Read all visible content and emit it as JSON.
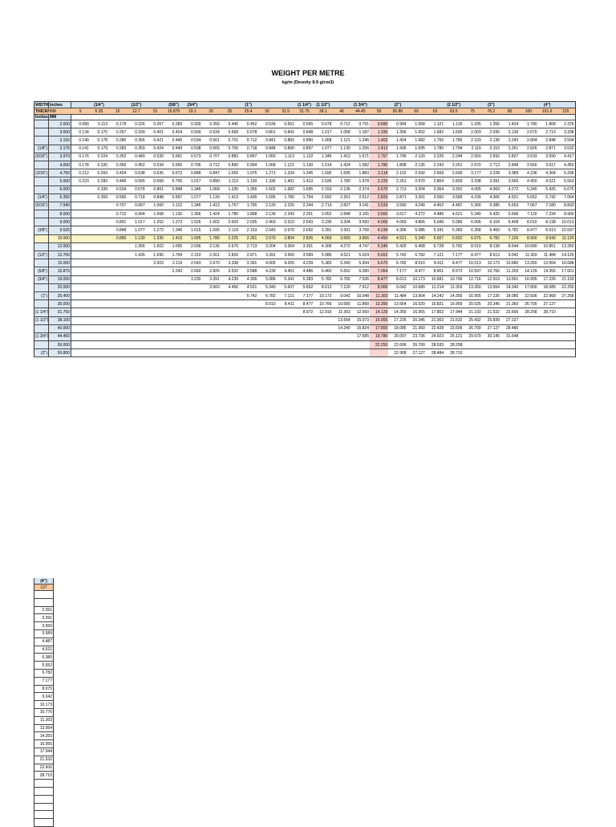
{
  "header": {
    "title": "WEIGHT PER METRE",
    "subtitle": "kg/m (Desnity 8.9 g/cm3)"
  },
  "table": {
    "width_label": "WIDTH",
    "width_unit": "Inches",
    "width_inches": [
      null,
      "(1/4\")",
      null,
      "(1/2\")",
      null,
      "(5/8\")",
      "(3/4\")",
      null,
      null,
      "(1\")",
      null,
      null,
      "(1 1/4\")",
      "(1 1/2\")",
      null,
      "(1 3/4\")",
      null,
      "(2\")",
      null,
      null,
      "(2 1/2\")",
      null,
      "(3\")",
      null,
      null,
      "(4\")",
      null
    ],
    "thickness_label": "THICKNESS",
    "mm_unit": "MM",
    "width_mm": [
      "5",
      "6.35",
      "10",
      "12.7",
      "15",
      "15.875",
      "19.1",
      "20",
      "25",
      "25.4",
      "30",
      "31.5",
      "31.75",
      "38.1",
      "40",
      "44.45",
      "50",
      "50.80",
      "60",
      "63",
      "63.5",
      "75",
      "76.2",
      "80",
      "100",
      "101.6",
      "125"
    ],
    "row_head_inches": "Inches",
    "row_head_mm": "MM",
    "rows": [
      {
        "inch": null,
        "mm": "2.000",
        "cells": [
          "0.089",
          "0.113",
          "0.178",
          "0.226",
          "0.267",
          "0.283",
          "0.339",
          "0.356",
          "0.445",
          "0.452",
          "0.534",
          "0.561",
          "0.565",
          "0.678",
          "0.712",
          "0.791",
          "0.890",
          "0.904",
          "1.068",
          "1.121",
          "1.130",
          "1.335",
          "1.356",
          "1.424",
          "1.780",
          "1.808",
          "2.225"
        ]
      },
      {
        "inch": null,
        "mm": "3.000",
        "cells": [
          "0.134",
          "0.170",
          "0.267",
          "0.339",
          "0.401",
          "0.424",
          "0.509",
          "0.534",
          "0.668",
          "0.678",
          "0.801",
          "0.841",
          "0.848",
          "1.017",
          "1.068",
          "1.187",
          "1.335",
          "1.356",
          "1.602",
          "1.682",
          "1.695",
          "2.003",
          "2.035",
          "2.136",
          "2.670",
          "2.713",
          "3.338"
        ]
      },
      {
        "inch": null,
        "mm": "3.150",
        "cells": [
          "0.140",
          "0.178",
          "0.280",
          "0.356",
          "0.421",
          "0.445",
          "0.534",
          "0.561",
          "0.701",
          "0.712",
          "0.841",
          "0.883",
          "0.890",
          "1.068",
          "1.121",
          "1.246",
          "1.402",
          "1.424",
          "1.682",
          "1.766",
          "1.780",
          "2.103",
          "2.136",
          "2.243",
          "2.804",
          "2.848",
          "3.504"
        ]
      },
      {
        "inch": "(1/8\")",
        "mm": "3.175",
        "cells": [
          "0.141",
          "0.179",
          "0.283",
          "0.359",
          "0.424",
          "0.449",
          "0.538",
          "0.565",
          "0.706",
          "0.718",
          "0.848",
          "0.890",
          "0.897",
          "1.077",
          "1.130",
          "1.256",
          "1.412",
          "1.435",
          "1.695",
          "1.780",
          "1.794",
          "2.119",
          "2.153",
          "2.261",
          "2.826",
          "2.871",
          "3.532"
        ]
      },
      {
        "inch": "(5/32\")",
        "mm": "3.970",
        "cells": [
          "0.176",
          "0.224",
          "0.352",
          "0.449",
          "0.530",
          "0.561",
          "0.673",
          "0.707",
          "0.883",
          "0.897",
          "1.060",
          "1.113",
          "1.122",
          "1.346",
          "1.413",
          "1.571",
          "1.767",
          "1.795",
          "2.120",
          "2.226",
          "2.244",
          "2.650",
          "2.692",
          "2.827",
          "3.533",
          "3.590",
          "4.417"
        ]
      },
      {
        "inch": null,
        "mm": "4.000",
        "cells": [
          "0.178",
          "0.226",
          "0.356",
          "0.452",
          "0.534",
          "0.565",
          "0.706",
          "0.712",
          "0.890",
          "0.904",
          "1.068",
          "1.121",
          "1.130",
          "1.614",
          "1.424",
          "1.582",
          "1.780",
          "1.808",
          "2.136",
          "2.243",
          "2.261",
          "2.670",
          "2.713",
          "2.848",
          "3.560",
          "3.617",
          "4.450"
        ]
      },
      {
        "inch": "(3/16\")",
        "mm": "4.760",
        "cells": [
          "0.212",
          "0.269",
          "0.424",
          "0.538",
          "0.635",
          "0.673",
          "0.848",
          "0.847",
          "1.059",
          "1.076",
          "1.271",
          "1.334",
          "1.345",
          "1.695",
          "1.695",
          "1.883",
          "2.118",
          "2.152",
          "2.542",
          "2.669",
          "2.690",
          "3.177",
          "3.228",
          "3.389",
          "4.236",
          "4.304",
          "5.296"
        ]
      },
      {
        "inch": null,
        "mm": "5.000",
        "cells": [
          "0.223",
          "0.283",
          "0.445",
          "0.565",
          "0.668",
          "0.706",
          "1.017",
          "0.890",
          "1.113",
          "1.130",
          "1.335",
          "1.402",
          "1.413",
          "2.035",
          "1.780",
          "1.978",
          "2.225",
          "2.261",
          "2.670",
          "2.804",
          "2.826",
          "3.338",
          "3.391",
          "3.560",
          "4.450",
          "4.521",
          "5.563"
        ]
      },
      {
        "inch": null,
        "mm": "6.000",
        "cells": [
          null,
          "0.339",
          "0.534",
          "0.678",
          "0.801",
          "0.848",
          "1.346",
          "1.068",
          "1.335",
          "1.356",
          "1.602",
          "1.682",
          "1.695",
          "2.153",
          "2.136",
          "2.374",
          "2.670",
          "2.713",
          "3.204",
          "3.364",
          "3.391",
          "4.005",
          "4.069",
          "4.272",
          "5.340",
          "5.425",
          "6.675"
        ]
      },
      {
        "inch": "(1/4\")",
        "mm": "6.350",
        "cells": [
          null,
          "0.359",
          "0.565",
          "0.718",
          "0.848",
          "0.897",
          "1.077",
          "1.130",
          "1.413",
          "1.435",
          "1.695",
          "1.780",
          "1.794",
          "2.692",
          "2.261",
          "2.512",
          "2.825",
          "2.871",
          "3.391",
          "3.560",
          "3.589",
          "4.239",
          "4.306",
          "4.521",
          "5.652",
          "5.742",
          "7.064"
        ]
      },
      {
        "inch": "(5/16\")",
        "mm": "7.940",
        "cells": [
          null,
          null,
          "0.707",
          "0.897",
          "1.060",
          "1.122",
          "1.346",
          "1.413",
          "1.767",
          "1.795",
          "2.120",
          "2.226",
          "2.244",
          "2.713",
          "2.827",
          "3.141",
          "3.533",
          "3.590",
          "4.240",
          "4.452",
          "4.487",
          "5.300",
          "5.385",
          "5.653",
          "7.067",
          "7.180",
          "8.833"
        ]
      },
      {
        "inch": null,
        "mm": "8.000",
        "cells": [
          null,
          null,
          "0.712",
          "0.904",
          "1.068",
          "1.130",
          "1.356",
          "1.424",
          "1.780",
          "1.808",
          "2.136",
          "2.243",
          "2.261",
          "3.052",
          "2.848",
          "3.165",
          "3.560",
          "3.617",
          "4.272",
          "4.486",
          "4.521",
          "5.340",
          "5.425",
          "5.696",
          "7.120",
          "7.234",
          "8.900"
        ]
      },
      {
        "inch": null,
        "mm": "9.000",
        "cells": [
          null,
          null,
          "0.801",
          "1.017",
          "1.202",
          "1.273",
          "1.526",
          "1.602",
          "2.003",
          "2.035",
          "2.403",
          "2.523",
          "2.543",
          "3.230",
          "3.204",
          "3.560",
          "4.005",
          "4.069",
          "4.806",
          "5.046",
          "5.086",
          "6.006",
          "6.104",
          "6.408",
          "8.010",
          "8.138",
          "10.013"
        ]
      },
      {
        "inch": "(3/8\")",
        "mm": "9.525",
        "cells": [
          null,
          null,
          "0.848",
          "1.077",
          "1.272",
          "1.346",
          "1.615",
          "1.695",
          "2.119",
          "2.153",
          "2.543",
          "2.670",
          "2.692",
          "3.391",
          "3.391",
          "3.768",
          "4.239",
          "4.306",
          "5.086",
          "5.341",
          "5.383",
          "6.358",
          "6.460",
          "6.782",
          "8.477",
          "8.613",
          "10.597"
        ]
      },
      {
        "inch": null,
        "mm": "10.000",
        "cells": [
          null,
          null,
          "0.890",
          "1.130",
          "1.335",
          "1.413",
          "1.695",
          "1.780",
          "2.225",
          "2.261",
          "2.670",
          "2.804",
          "2.826",
          "4.069",
          "3.560",
          "3.956",
          "4.450",
          "4.521",
          "5.340",
          "5.607",
          "5.652",
          "6.675",
          "6.782",
          "7.120",
          "8.900",
          "9.042",
          "11.125"
        ]
      },
      {
        "inch": null,
        "mm": "12.000",
        "cells": [
          null,
          null,
          null,
          "1.356",
          "1.602",
          "1.695",
          "2.036",
          "2.136",
          "2.670",
          "2.713",
          "3.204",
          "3.364",
          "3.391",
          "4.306",
          "4.272",
          "4.747",
          "5.340",
          "5.425",
          "6.408",
          "6.728",
          "6.782",
          "8.010",
          "8.138",
          "8.544",
          "10.680",
          "10.851",
          "13.350"
        ]
      },
      {
        "inch": "(1/2\")",
        "mm": "12.700",
        "cells": [
          null,
          null,
          null,
          "1.435",
          "1.695",
          "1.794",
          "2.153",
          "2.261",
          "2.826",
          "2.871",
          "3.391",
          "3.560",
          "3.589",
          "5.086",
          "4.521",
          "5.024",
          "5.652",
          "5.742",
          "6.782",
          "7.121",
          "7.177",
          "8.477",
          "8.613",
          "9.042",
          "11.303",
          "11.484",
          "14.129"
        ]
      },
      {
        "inch": null,
        "mm": "15.000",
        "cells": [
          null,
          null,
          null,
          null,
          "2.003",
          "2.119",
          "2.543",
          "2.670",
          "3.338",
          "3.391",
          "4.005",
          "4.205",
          "4.239",
          "5.383",
          "5.340",
          "5.934",
          "6.675",
          "6.782",
          "8.010",
          "8.411",
          "8.477",
          "10.013",
          "10.173",
          "10.680",
          "13.350",
          "13.564",
          "16.688"
        ]
      },
      {
        "inch": "(5/8\")",
        "mm": "15.875",
        "cells": [
          null,
          null,
          null,
          null,
          null,
          "2.243",
          "2.692",
          "2.826",
          "3.532",
          "3.588",
          "4.239",
          "4.451",
          "4.486",
          "6.460",
          "5.652",
          "6.280",
          "7.064",
          "7.177",
          "8.477",
          "8.901",
          "8.972",
          "10.597",
          "10.766",
          "11.303",
          "14.129",
          "14.355",
          "17.661"
        ]
      },
      {
        "inch": "(3/4\")",
        "mm": "19.050",
        "cells": [
          null,
          null,
          null,
          null,
          null,
          null,
          "3.230",
          "3.391",
          "4.239",
          "4.306",
          "5.086",
          "5.341",
          "5.383",
          "5.782",
          "6.782",
          "7.536",
          "8.477",
          "8.613",
          "10.173",
          "10.681",
          "10.766",
          "12.716",
          "12.919",
          "13.561",
          "16.955",
          "17.226",
          "21.193"
        ]
      },
      {
        "inch": null,
        "mm": "20.000",
        "cells": [
          null,
          null,
          null,
          null,
          null,
          null,
          null,
          "3.560",
          "4.450",
          "4.521",
          "5.340",
          "5.607",
          "5.652",
          "8.613",
          "7.120",
          "7.912",
          "8.900",
          "9.042",
          "10.680",
          "11.214",
          "11.303",
          "13.350",
          "13.564",
          "14.240",
          "17.800",
          "18.085",
          "22.250"
        ]
      },
      {
        "inch": "(1\")",
        "mm": "25.400",
        "cells": [
          null,
          null,
          null,
          null,
          null,
          null,
          null,
          null,
          null,
          "5.742",
          "6.782",
          "7.121",
          "7.177",
          "10.173",
          "9.042",
          "10.048",
          "11.303",
          "11.484",
          "13.564",
          "14.242",
          "14.355",
          "16.955",
          "17.226",
          "18.085",
          "22.606",
          "22.968",
          "27.258"
        ]
      },
      {
        "inch": null,
        "mm": "30.000",
        "cells": [
          null,
          null,
          null,
          null,
          null,
          null,
          null,
          null,
          null,
          null,
          "8.010",
          "8.411",
          "8.477",
          "10.766",
          "10.680",
          "11.868",
          "13.350",
          "13.564",
          "16.020",
          "16.821",
          "16.955",
          "20.025",
          "20.345",
          "21.360",
          "26.700",
          "27.127",
          null
        ]
      },
      {
        "inch": "(1 1/4\")",
        "mm": "31.750",
        "cells": [
          null,
          null,
          null,
          null,
          null,
          null,
          null,
          null,
          null,
          null,
          null,
          null,
          "8.972",
          "12.919",
          "11.303",
          "12.560",
          "14.129",
          "14.355",
          "16.955",
          "17.802",
          "17.944",
          "21.193",
          "21.532",
          "22.606",
          "28.258",
          "28.710",
          null
        ]
      },
      {
        "inch": "(1 1/2\")",
        "mm": "38.100",
        "cells": [
          null,
          null,
          null,
          null,
          null,
          null,
          null,
          null,
          null,
          null,
          null,
          null,
          null,
          null,
          "13.564",
          "15.073",
          "16.955",
          "17.226",
          "20.345",
          "21.363",
          "21.532",
          "25.432",
          "25.839",
          "27.127",
          null,
          null,
          null
        ]
      },
      {
        "inch": null,
        "mm": "40.000",
        "cells": [
          null,
          null,
          null,
          null,
          null,
          null,
          null,
          null,
          null,
          null,
          null,
          null,
          null,
          null,
          "14.240",
          "15.824",
          "17.800",
          "18.085",
          "21.360",
          "22.428",
          "22.606",
          "26.700",
          "27.127",
          "28.480",
          null,
          null,
          null
        ]
      },
      {
        "inch": "(1 3/4\")",
        "mm": "44.450",
        "cells": [
          null,
          null,
          null,
          null,
          null,
          null,
          null,
          null,
          null,
          null,
          null,
          null,
          null,
          null,
          null,
          "17.585",
          "19.780",
          "20.097",
          "23.736",
          "24.923",
          "25.121",
          "29.670",
          "30.145",
          "31.648",
          null,
          null,
          null
        ]
      },
      {
        "inch": null,
        "mm": "50.000",
        "cells": [
          null,
          null,
          null,
          null,
          null,
          null,
          null,
          null,
          null,
          null,
          null,
          null,
          null,
          null,
          null,
          null,
          "22.250",
          "22.606",
          "26.700",
          "28.035",
          "28.258",
          null,
          null,
          null,
          null,
          null,
          null
        ]
      },
      {
        "inch": "(2\")",
        "mm": "50.800",
        "cells": [
          null,
          null,
          null,
          null,
          null,
          null,
          null,
          null,
          null,
          null,
          null,
          null,
          null,
          null,
          null,
          null,
          null,
          "22.968",
          "27.127",
          "28.484",
          "28.710",
          null,
          null,
          null,
          null,
          null,
          null
        ]
      }
    ]
  },
  "side_table": {
    "header": "(4\")",
    "mm": "127",
    "values": [
      null,
      null,
      "2.261",
      "3.391",
      "3.560",
      "3.589",
      "4.487",
      "4.521",
      "5.380",
      "5.652",
      "6.782",
      "7.177",
      "8.975",
      "9.042",
      "10.173",
      "10.776",
      "11.303",
      "13.564",
      "14.355",
      "16.955",
      "17.944",
      "21.532",
      "22.606",
      "28.710"
    ]
  }
}
